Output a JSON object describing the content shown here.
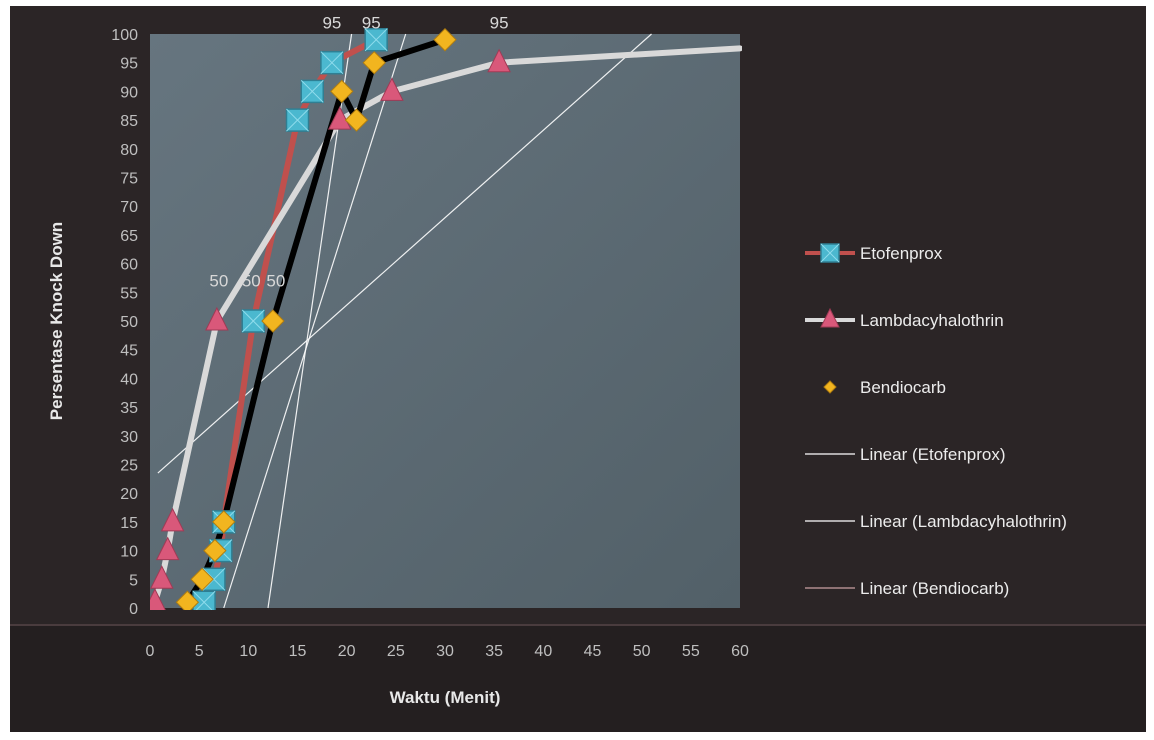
{
  "chart_data": {
    "type": "line",
    "title": "",
    "xlabel": "Waktu (Menit)",
    "ylabel": "Persentase Knock Down",
    "xlim": [
      0,
      60
    ],
    "ylim": [
      0,
      100
    ],
    "x_ticks": [
      0,
      5,
      10,
      15,
      20,
      25,
      30,
      35,
      40,
      45,
      50,
      55,
      60
    ],
    "y_ticks": [
      0,
      5,
      10,
      15,
      20,
      25,
      30,
      35,
      40,
      45,
      50,
      55,
      60,
      65,
      70,
      75,
      80,
      85,
      90,
      95,
      100
    ],
    "grid": false,
    "legend_position": "right",
    "series": [
      {
        "name": "Etofenprox",
        "marker": "square",
        "color": "#4bb8cf",
        "line_color": "#c0504d",
        "points": [
          [
            5.5,
            1
          ],
          [
            6.5,
            5
          ],
          [
            7.2,
            10
          ],
          [
            7.5,
            15
          ],
          [
            10.5,
            50
          ],
          [
            15,
            85
          ],
          [
            16.5,
            90
          ],
          [
            18.5,
            95
          ],
          [
            23,
            99
          ]
        ]
      },
      {
        "name": "Lambdacyhalothrin",
        "marker": "triangle",
        "color": "#d9587a",
        "line_color": "#d9d9d9",
        "points": [
          [
            0.5,
            1
          ],
          [
            1.2,
            5
          ],
          [
            1.8,
            10
          ],
          [
            2.3,
            15
          ],
          [
            6.8,
            50
          ],
          [
            19.3,
            85
          ],
          [
            24.6,
            90
          ],
          [
            35.5,
            95
          ],
          [
            60,
            97.5
          ]
        ]
      },
      {
        "name": "Bendiocarb",
        "marker": "diamond",
        "color": "#f2b51f",
        "line_color": "#000000",
        "points": [
          [
            3.8,
            1
          ],
          [
            5.3,
            5
          ],
          [
            6.6,
            10
          ],
          [
            7.5,
            15
          ],
          [
            12.5,
            50
          ],
          [
            19.5,
            90
          ],
          [
            21,
            85
          ],
          [
            22.8,
            95
          ],
          [
            30,
            99
          ]
        ]
      }
    ],
    "trendlines": [
      {
        "name": "Linear (Etofenprox)",
        "color": "#ffffff",
        "x": [
          7.5,
          26
        ],
        "y": [
          0,
          100
        ]
      },
      {
        "name": "Linear (Lambdacyhalothrin)",
        "color": "#ffffff",
        "x": [
          0.8,
          51
        ],
        "y": [
          23.5,
          100
        ]
      },
      {
        "name": "Linear (Bendiocarb)",
        "color": "#ffffff",
        "x": [
          12,
          20.5
        ],
        "y": [
          0,
          100
        ]
      }
    ],
    "data_labels": [
      {
        "text": "50",
        "x": 7,
        "y": 56
      },
      {
        "text": "50",
        "x": 10.3,
        "y": 56
      },
      {
        "text": "50",
        "x": 12.8,
        "y": 56
      },
      {
        "text": "95",
        "x": 18.5,
        "y": 101
      },
      {
        "text": "95",
        "x": 22.5,
        "y": 101
      },
      {
        "text": "95",
        "x": 35.5,
        "y": 101
      }
    ],
    "legend": [
      {
        "label": "Etofenprox",
        "kind": "series"
      },
      {
        "label": "Lambdacyhalothrin",
        "kind": "series"
      },
      {
        "label": "Bendiocarb",
        "kind": "series"
      },
      {
        "label": "Linear (Etofenprox)",
        "kind": "trend",
        "color": "#ffffff"
      },
      {
        "label": "Linear (Lambdacyhalothrin)",
        "kind": "trend",
        "color": "#ffffff"
      },
      {
        "label": "Linear (Bendiocarb)",
        "kind": "trend",
        "color": "#c9a0a3"
      }
    ],
    "colors": {
      "background": "#2b2526",
      "plot_area": "#5c6a73",
      "ticks": "#bfbfbf"
    }
  }
}
